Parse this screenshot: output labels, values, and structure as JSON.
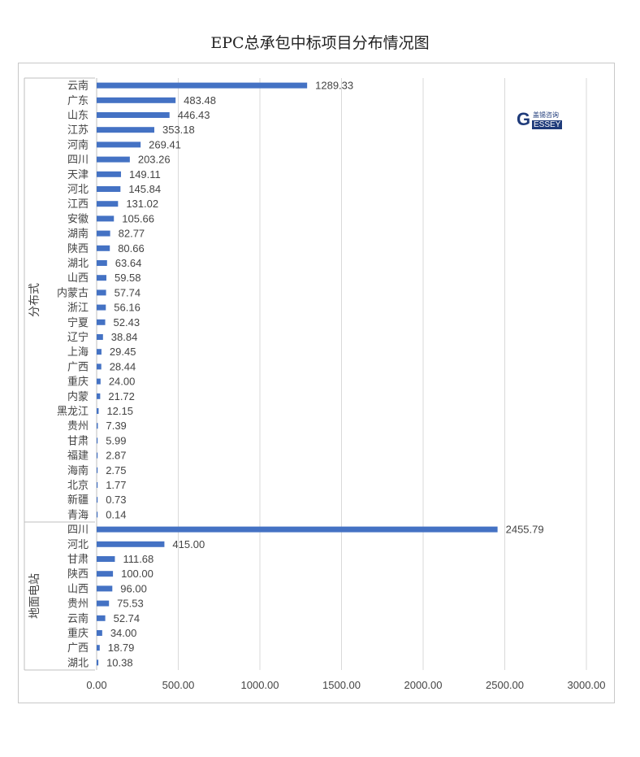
{
  "chart_data": {
    "type": "bar",
    "orientation": "horizontal",
    "title": "EPC总承包中标项目分布情况图",
    "xlim": [
      0,
      3000
    ],
    "x_ticks": [
      "0.00",
      "500.00",
      "1000.00",
      "1500.00",
      "2000.00",
      "2500.00",
      "3000.00"
    ],
    "grid": "vertical",
    "bar_color": "#4472c4",
    "groups": [
      {
        "name": "分布式",
        "categories": [
          "云南",
          "广东",
          "山东",
          "江苏",
          "河南",
          "四川",
          "天津",
          "河北",
          "江西",
          "安徽",
          "湖南",
          "陕西",
          "湖北",
          "山西",
          "内蒙古",
          "浙江",
          "宁夏",
          "辽宁",
          "上海",
          "广西",
          "重庆",
          "内蒙",
          "黑龙江",
          "贵州",
          "甘肃",
          "福建",
          "海南",
          "北京",
          "新疆",
          "青海"
        ],
        "values": [
          1289.33,
          483.48,
          446.43,
          353.18,
          269.41,
          203.26,
          149.11,
          145.84,
          131.02,
          105.66,
          82.77,
          80.66,
          63.64,
          59.58,
          57.74,
          56.16,
          52.43,
          38.84,
          29.45,
          28.44,
          24.0,
          21.72,
          12.15,
          7.39,
          5.99,
          2.87,
          2.75,
          1.77,
          0.73,
          0.14
        ],
        "labels": [
          "1289.33",
          "483.48",
          "446.43",
          "353.18",
          "269.41",
          "203.26",
          "149.11",
          "145.84",
          "131.02",
          "105.66",
          "82.77",
          "80.66",
          "63.64",
          "59.58",
          "57.74",
          "56.16",
          "52.43",
          "38.84",
          "29.45",
          "28.44",
          "24.00",
          "21.72",
          "12.15",
          "7.39",
          "5.99",
          "2.87",
          "2.75",
          "1.77",
          "0.73",
          "0.14"
        ]
      },
      {
        "name": "地面电站",
        "categories": [
          "四川",
          "河北",
          "甘肃",
          "陕西",
          "山西",
          "贵州",
          "云南",
          "重庆",
          "广西",
          "湖北"
        ],
        "values": [
          2455.79,
          415.0,
          111.68,
          100.0,
          96.0,
          75.53,
          52.74,
          34.0,
          18.79,
          10.38
        ],
        "labels": [
          "2455.79",
          "415.00",
          "111.68",
          "100.00",
          "96.00",
          "75.53",
          "52.74",
          "34.00",
          "18.79",
          "10.38"
        ]
      }
    ]
  },
  "logo": {
    "letter": "G",
    "text_cn": "盖锡咨询",
    "text_en": "ESSEY"
  }
}
